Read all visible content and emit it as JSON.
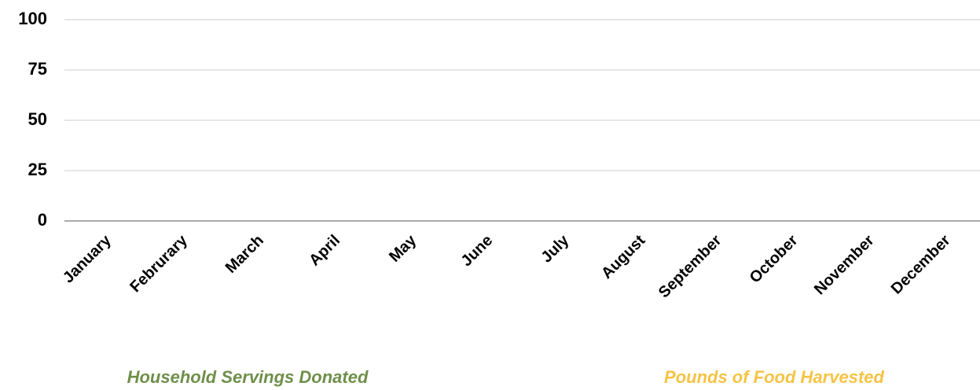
{
  "chart_data": {
    "type": "bar",
    "categories": [
      "January",
      "Februrary",
      "March",
      "April",
      "May",
      "June",
      "July",
      "August",
      "September",
      "October",
      "November",
      "December"
    ],
    "series": [
      {
        "name": "Household Servings Donated",
        "color": "#6e8f4a",
        "values": [
          null,
          null,
          null,
          null,
          null,
          null,
          null,
          null,
          null,
          null,
          null,
          null
        ]
      },
      {
        "name": "Pounds of Food Harvested",
        "color": "#f6c344",
        "values": [
          null,
          null,
          null,
          null,
          null,
          null,
          null,
          null,
          null,
          null,
          null,
          null
        ]
      }
    ],
    "ylim": [
      0,
      100
    ],
    "yticks": [
      0,
      25,
      50,
      75,
      100
    ],
    "grid": true,
    "legend": "bottom"
  }
}
